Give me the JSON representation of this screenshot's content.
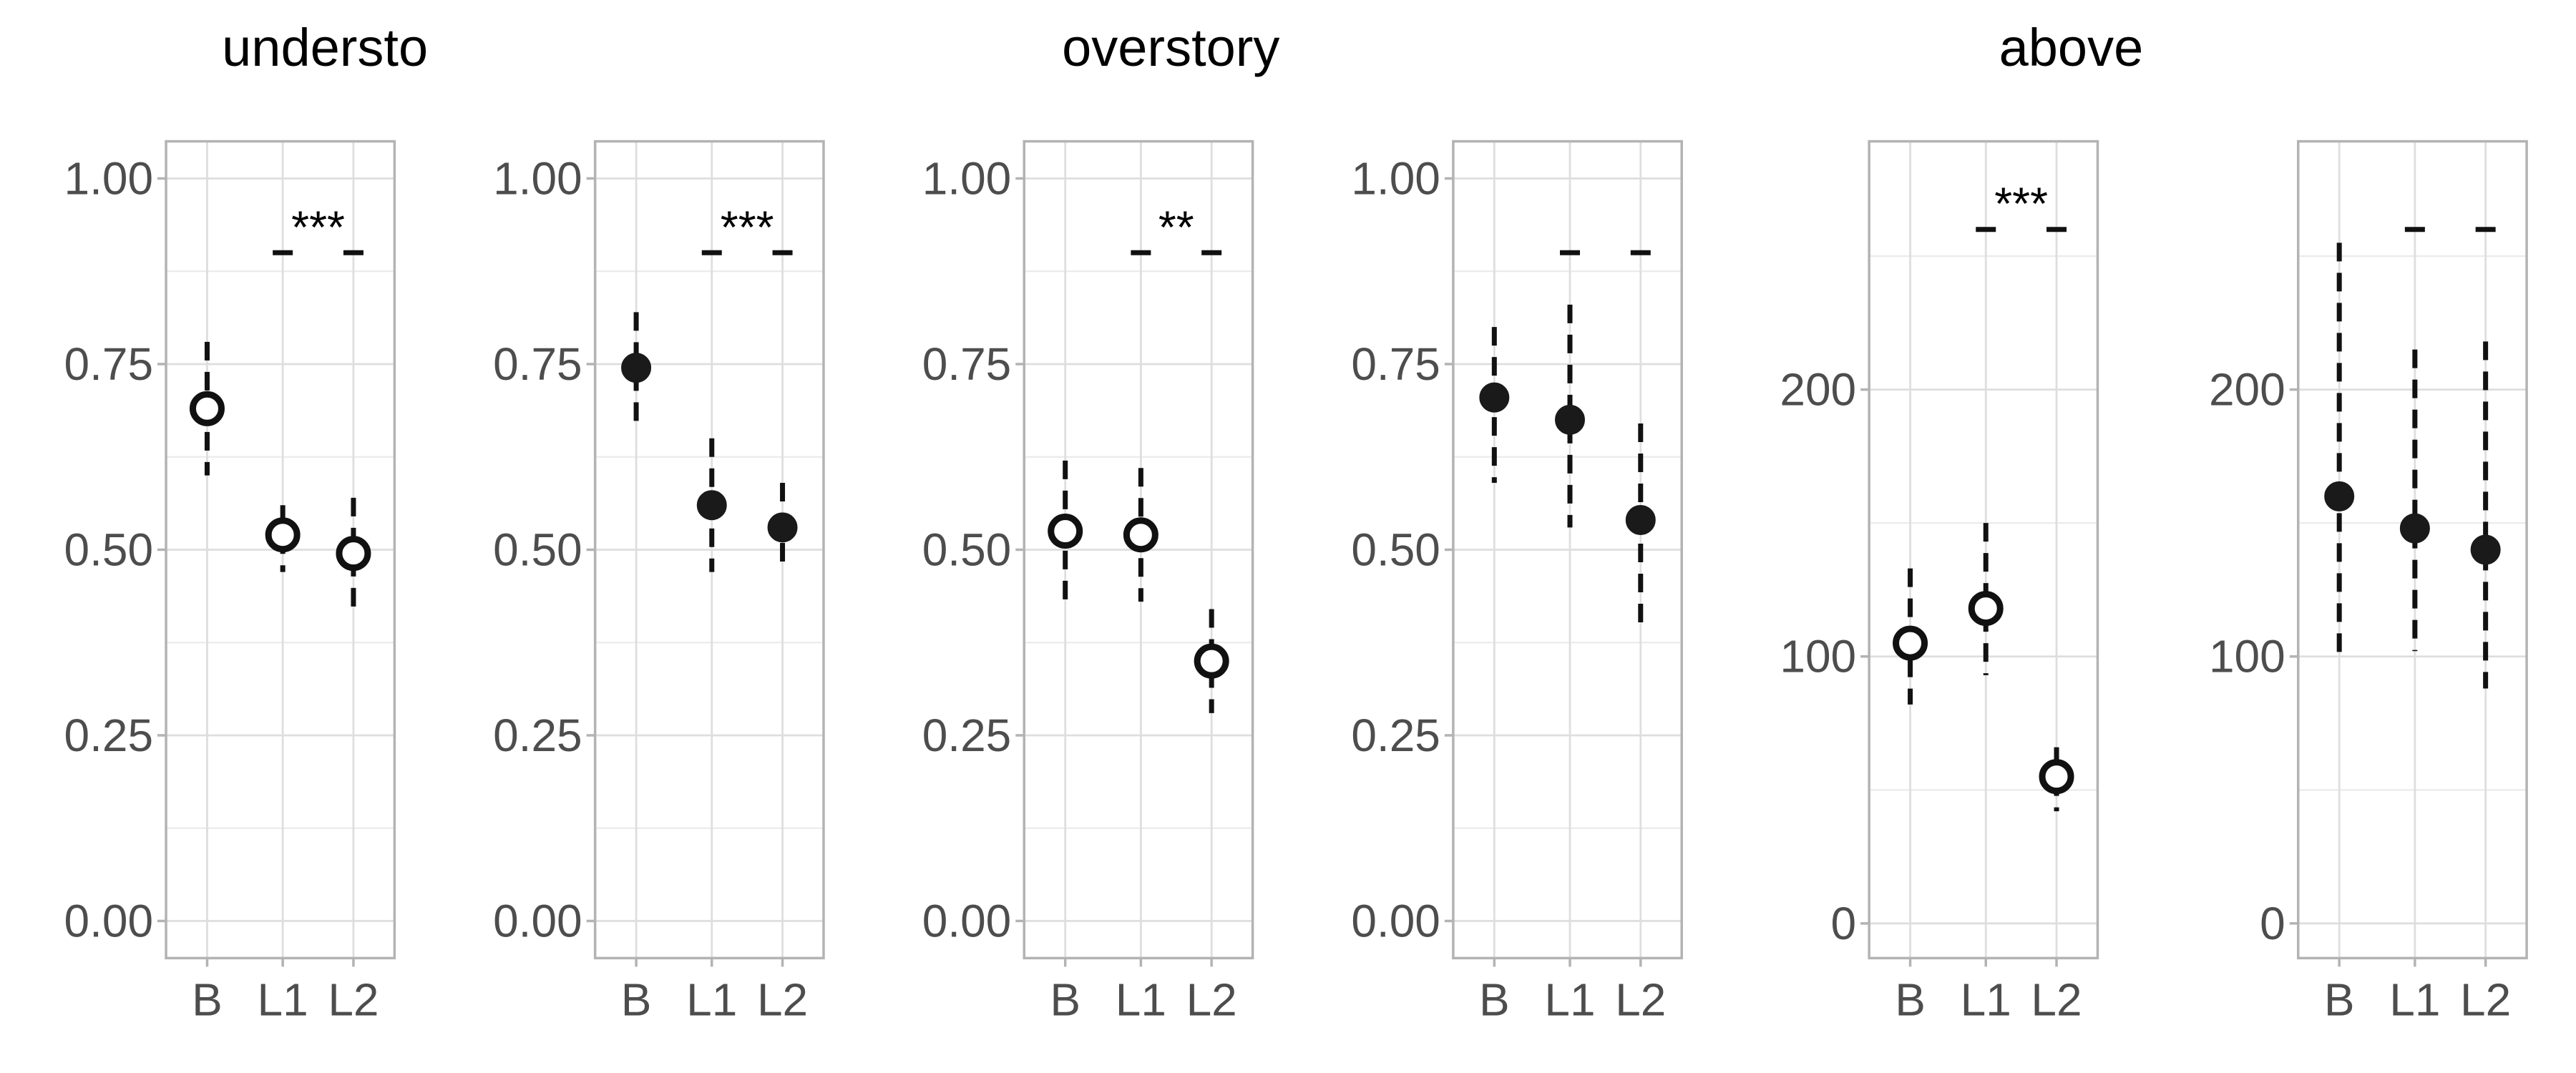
{
  "figure_titles": [
    "understο",
    "overstory",
    "above"
  ],
  "chart_data": [
    {
      "type": "scatter",
      "title": "",
      "categories": [
        "B",
        "L1",
        "L2"
      ],
      "ylim": [
        -0.05,
        1.05
      ],
      "yticks": [
        "0.00",
        "0.25",
        "0.50",
        "0.75",
        "1.00"
      ],
      "ytick_values": [
        0,
        0.25,
        0.5,
        0.75,
        1.0
      ],
      "grid": true,
      "points": [
        {
          "x": "B",
          "y": 0.69,
          "lo": 0.6,
          "hi": 0.78,
          "filled": false
        },
        {
          "x": "L1",
          "y": 0.52,
          "lo": 0.47,
          "hi": 0.56,
          "filled": false
        },
        {
          "x": "L2",
          "y": 0.495,
          "lo": 0.42,
          "hi": 0.57,
          "filled": false
        }
      ],
      "markers": [
        {
          "x": "L1",
          "y": 0.9
        },
        {
          "x": "L2",
          "y": 0.9
        }
      ],
      "significance": "***"
    },
    {
      "type": "scatter",
      "title": "",
      "categories": [
        "B",
        "L1",
        "L2"
      ],
      "ylim": [
        -0.05,
        1.05
      ],
      "yticks": [
        "0.00",
        "0.25",
        "0.50",
        "0.75",
        "1.00"
      ],
      "ytick_values": [
        0,
        0.25,
        0.5,
        0.75,
        1.0
      ],
      "grid": true,
      "points": [
        {
          "x": "B",
          "y": 0.745,
          "lo": 0.67,
          "hi": 0.82,
          "filled": true
        },
        {
          "x": "L1",
          "y": 0.56,
          "lo": 0.47,
          "hi": 0.65,
          "filled": true
        },
        {
          "x": "L2",
          "y": 0.53,
          "lo": 0.47,
          "hi": 0.59,
          "filled": true
        }
      ],
      "markers": [
        {
          "x": "L1",
          "y": 0.9
        },
        {
          "x": "L2",
          "y": 0.9
        }
      ],
      "significance": "***"
    },
    {
      "type": "scatter",
      "title": "",
      "categories": [
        "B",
        "L1",
        "L2"
      ],
      "ylim": [
        -0.05,
        1.05
      ],
      "yticks": [
        "0.00",
        "0.25",
        "0.50",
        "0.75",
        "1.00"
      ],
      "ytick_values": [
        0,
        0.25,
        0.5,
        0.75,
        1.0
      ],
      "grid": true,
      "points": [
        {
          "x": "B",
          "y": 0.525,
          "lo": 0.42,
          "hi": 0.62,
          "filled": false
        },
        {
          "x": "L1",
          "y": 0.52,
          "lo": 0.43,
          "hi": 0.61,
          "filled": false
        },
        {
          "x": "L2",
          "y": 0.35,
          "lo": 0.28,
          "hi": 0.42,
          "filled": false
        }
      ],
      "markers": [
        {
          "x": "L1",
          "y": 0.9
        },
        {
          "x": "L2",
          "y": 0.9
        }
      ],
      "significance": "**"
    },
    {
      "type": "scatter",
      "title": "",
      "categories": [
        "B",
        "L1",
        "L2"
      ],
      "ylim": [
        -0.05,
        1.05
      ],
      "yticks": [
        "0.00",
        "0.25",
        "0.50",
        "0.75",
        "1.00"
      ],
      "ytick_values": [
        0,
        0.25,
        0.5,
        0.75,
        1.0
      ],
      "grid": true,
      "points": [
        {
          "x": "B",
          "y": 0.705,
          "lo": 0.59,
          "hi": 0.8,
          "filled": true
        },
        {
          "x": "L1",
          "y": 0.675,
          "lo": 0.53,
          "hi": 0.83,
          "filled": true
        },
        {
          "x": "L2",
          "y": 0.54,
          "lo": 0.4,
          "hi": 0.67,
          "filled": true
        }
      ],
      "markers": [
        {
          "x": "L1",
          "y": 0.9
        },
        {
          "x": "L2",
          "y": 0.9
        }
      ],
      "significance": ""
    },
    {
      "type": "scatter",
      "title": "",
      "categories": [
        "B",
        "L1",
        "L2"
      ],
      "ylim": [
        -13,
        293
      ],
      "yticks": [
        "0",
        "100",
        "200"
      ],
      "ytick_values": [
        0,
        100,
        200
      ],
      "grid": true,
      "points": [
        {
          "x": "B",
          "y": 105,
          "lo": 82,
          "hi": 133,
          "filled": false
        },
        {
          "x": "L1",
          "y": 118,
          "lo": 93,
          "hi": 150,
          "filled": false
        },
        {
          "x": "L2",
          "y": 55,
          "lo": 42,
          "hi": 66,
          "filled": false
        }
      ],
      "markers": [
        {
          "x": "L1",
          "y": 260
        },
        {
          "x": "L2",
          "y": 260
        }
      ],
      "significance": "***"
    },
    {
      "type": "scatter",
      "title": "",
      "categories": [
        "B",
        "L1",
        "L2"
      ],
      "ylim": [
        -13,
        293
      ],
      "yticks": [
        "0",
        "100",
        "200"
      ],
      "ytick_values": [
        0,
        100,
        200
      ],
      "grid": true,
      "points": [
        {
          "x": "B",
          "y": 160,
          "lo": 100,
          "hi": 255,
          "filled": true
        },
        {
          "x": "L1",
          "y": 148,
          "lo": 102,
          "hi": 215,
          "filled": true
        },
        {
          "x": "L2",
          "y": 140,
          "lo": 88,
          "hi": 218,
          "filled": true
        }
      ],
      "markers": [
        {
          "x": "L1",
          "y": 260
        },
        {
          "x": "L2",
          "y": 260
        }
      ],
      "significance": ""
    }
  ]
}
